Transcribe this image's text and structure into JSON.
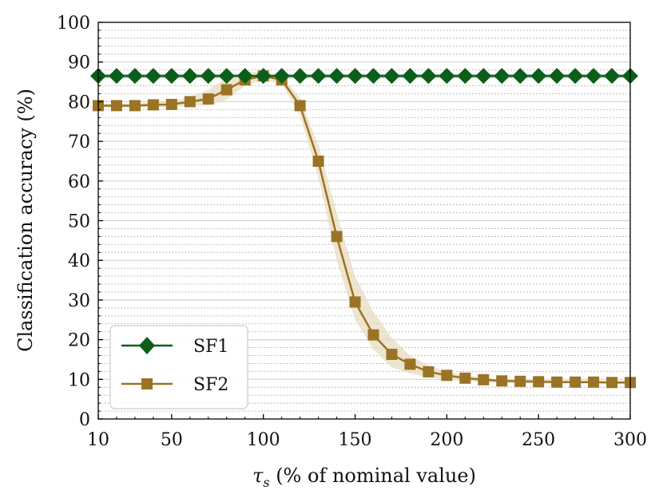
{
  "chart_data": {
    "type": "line",
    "title": "",
    "xlabel_symbol": "τ",
    "xlabel_subscript": "s",
    "xlabel_rest": " (% of nominal value)",
    "ylabel": "Classification accuracy (%)",
    "xlim": [
      10,
      300
    ],
    "ylim": [
      0,
      100
    ],
    "x_ticks": [
      10,
      50,
      100,
      150,
      200,
      250,
      300
    ],
    "y_ticks": [
      0,
      10,
      20,
      30,
      40,
      50,
      60,
      70,
      80,
      90,
      100
    ],
    "y_minor_step": 2,
    "grid": true,
    "legend_position": "lower-left",
    "x": [
      10,
      20,
      30,
      40,
      50,
      60,
      70,
      80,
      90,
      100,
      110,
      120,
      130,
      140,
      150,
      160,
      170,
      180,
      190,
      200,
      210,
      220,
      230,
      240,
      250,
      260,
      270,
      280,
      290,
      300
    ],
    "series": [
      {
        "name": "SF1",
        "marker": "diamond",
        "color": "#0b5e1a",
        "values": [
          86.5,
          86.5,
          86.5,
          86.5,
          86.5,
          86.5,
          86.5,
          86.5,
          86.5,
          86.5,
          86.5,
          86.5,
          86.5,
          86.5,
          86.5,
          86.5,
          86.5,
          86.5,
          86.5,
          86.5,
          86.5,
          86.5,
          86.5,
          86.5,
          86.5,
          86.5,
          86.5,
          86.5,
          86.5,
          86.5
        ],
        "band_lower": [
          86,
          86,
          86,
          86,
          86,
          86,
          86,
          86,
          86,
          86,
          86,
          86,
          86,
          86,
          86,
          86,
          86,
          86,
          86,
          86,
          86,
          86,
          86,
          86,
          86,
          86,
          86,
          86,
          86,
          86
        ],
        "band_upper": [
          87,
          87,
          87,
          87,
          87,
          87,
          87,
          87,
          87,
          87,
          87,
          87,
          87,
          87,
          87,
          87,
          87,
          87,
          87,
          87,
          87,
          87,
          87,
          87,
          87,
          87,
          87,
          87,
          87,
          87
        ]
      },
      {
        "name": "SF2",
        "marker": "square",
        "color": "#9a7424",
        "band_color": "#e8dcc0",
        "values": [
          79,
          79,
          79,
          79.2,
          79.3,
          80,
          80.7,
          83,
          85.5,
          86.5,
          85.5,
          79,
          65,
          46,
          29.5,
          21.2,
          16.3,
          13.8,
          11.9,
          11,
          10.3,
          9.9,
          9.6,
          9.5,
          9.4,
          9.3,
          9.3,
          9.3,
          9.2,
          9.2
        ],
        "band_lower": [
          78.5,
          78.5,
          78.5,
          78.7,
          78.7,
          79,
          79,
          80.5,
          84,
          85.5,
          84.5,
          76.5,
          61,
          40,
          25,
          17.5,
          13,
          11.5,
          10.5,
          10,
          9.5,
          9.3,
          9.1,
          9,
          8.9,
          8.9,
          8.9,
          8.9,
          8.8,
          8.8
        ],
        "band_upper": [
          79.5,
          79.5,
          79.5,
          79.8,
          80,
          81.2,
          83,
          86,
          87.5,
          87.5,
          86.5,
          81,
          69,
          52,
          36,
          27,
          20.5,
          16,
          13.5,
          12,
          11,
          10.5,
          10.1,
          10,
          9.9,
          9.8,
          9.7,
          9.7,
          9.6,
          9.6
        ]
      }
    ]
  }
}
